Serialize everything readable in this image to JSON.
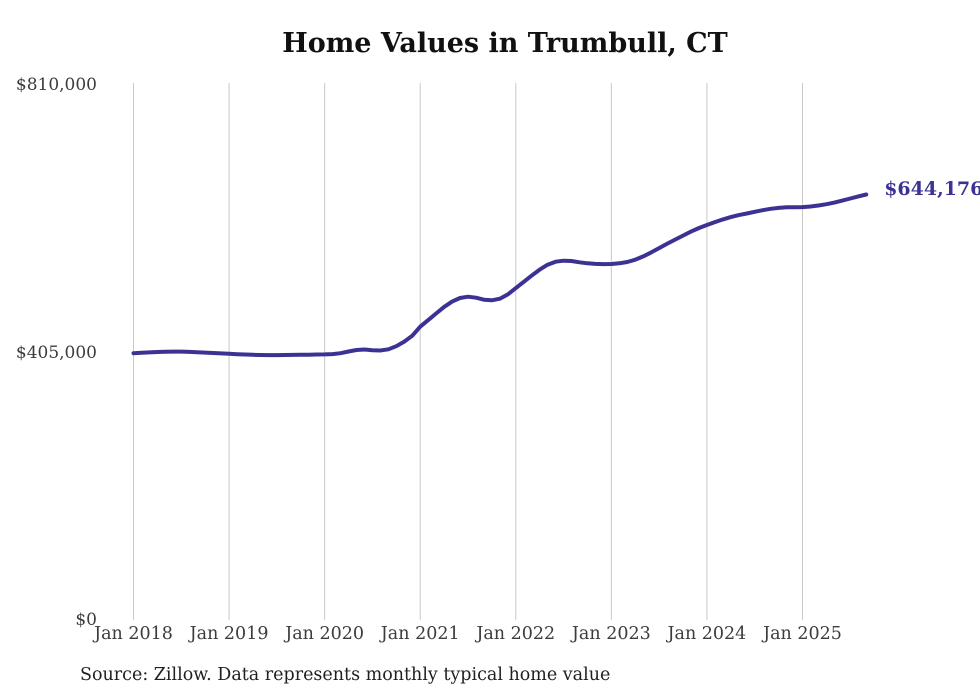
{
  "chart": {
    "title": "Home Values in Trumbull, CT",
    "end_label": "$644,176",
    "source_note": "Source: Zillow. Data represents monthly typical home value",
    "colors": {
      "line": "#3b3294",
      "grid": "#c9c9c9",
      "title_text": "#111111",
      "axis_text": "#3c3c3c",
      "end_label_text": "#3b3294",
      "background": "#ffffff"
    },
    "y_axis": {
      "ticks": [
        {
          "label": "$810,000",
          "value": 810000
        },
        {
          "label": "$405,000",
          "value": 405000
        },
        {
          "label": "$0",
          "value": 0
        }
      ]
    },
    "x_axis": {
      "ticks": [
        {
          "label": "Jan 2018",
          "month_index": 0
        },
        {
          "label": "Jan 2019",
          "month_index": 12
        },
        {
          "label": "Jan 2020",
          "month_index": 24
        },
        {
          "label": "Jan 2021",
          "month_index": 36
        },
        {
          "label": "Jan 2022",
          "month_index": 48
        },
        {
          "label": "Jan 2023",
          "month_index": 60
        },
        {
          "label": "Jan 2024",
          "month_index": 72
        },
        {
          "label": "Jan 2025",
          "month_index": 84
        }
      ]
    }
  },
  "chart_data": {
    "type": "line",
    "title": "Home Values in Trumbull, CT",
    "ylabel": "",
    "xlabel": "",
    "ylim": [
      0,
      810000
    ],
    "grid": "vertical-only",
    "legend": "none",
    "final_value": 644176,
    "final_value_label": "$644,176",
    "source": "Source: Zillow. Data represents monthly typical home value",
    "x": [
      "2018-01",
      "2018-02",
      "2018-03",
      "2018-04",
      "2018-05",
      "2018-06",
      "2018-07",
      "2018-08",
      "2018-09",
      "2018-10",
      "2018-11",
      "2018-12",
      "2019-01",
      "2019-02",
      "2019-03",
      "2019-04",
      "2019-05",
      "2019-06",
      "2019-07",
      "2019-08",
      "2019-09",
      "2019-10",
      "2019-11",
      "2019-12",
      "2020-01",
      "2020-02",
      "2020-03",
      "2020-04",
      "2020-05",
      "2020-06",
      "2020-07",
      "2020-08",
      "2020-09",
      "2020-10",
      "2020-11",
      "2020-12",
      "2021-01",
      "2021-02",
      "2021-03",
      "2021-04",
      "2021-05",
      "2021-06",
      "2021-07",
      "2021-08",
      "2021-09",
      "2021-10",
      "2021-11",
      "2021-12",
      "2022-01",
      "2022-02",
      "2022-03",
      "2022-04",
      "2022-05",
      "2022-06",
      "2022-07",
      "2022-08",
      "2022-09",
      "2022-10",
      "2022-11",
      "2022-12",
      "2023-01",
      "2023-02",
      "2023-03",
      "2023-04",
      "2023-05",
      "2023-06",
      "2023-07",
      "2023-08",
      "2023-09",
      "2023-10",
      "2023-11",
      "2023-12",
      "2024-01",
      "2024-02",
      "2024-03",
      "2024-04",
      "2024-05",
      "2024-06",
      "2024-07",
      "2024-08",
      "2024-09",
      "2024-10",
      "2024-11",
      "2024-12",
      "2025-01",
      "2025-02",
      "2025-03",
      "2025-04",
      "2025-05",
      "2025-06",
      "2025-07",
      "2025-08",
      "2025-09"
    ],
    "values": [
      404000,
      404500,
      405200,
      405800,
      406200,
      406400,
      406300,
      405900,
      405400,
      404800,
      404200,
      403600,
      403000,
      402400,
      401900,
      401500,
      401200,
      401100,
      401100,
      401200,
      401300,
      401500,
      401700,
      401900,
      402100,
      402600,
      404000,
      406500,
      408800,
      409500,
      408400,
      408000,
      409800,
      414500,
      421500,
      430500,
      444000,
      454000,
      464000,
      474000,
      482000,
      487500,
      489500,
      488000,
      485000,
      484000,
      486500,
      493000,
      502500,
      512000,
      521500,
      530500,
      538000,
      542500,
      544000,
      543500,
      541500,
      540000,
      539200,
      538800,
      539000,
      540000,
      542000,
      545500,
      550500,
      556500,
      563000,
      569500,
      576000,
      582000,
      588000,
      593500,
      598000,
      602500,
      606500,
      610000,
      613000,
      615500,
      618000,
      620500,
      622500,
      624000,
      624800,
      625000,
      625200,
      626000,
      627500,
      629500,
      632000,
      635000,
      638200,
      641300,
      644176
    ]
  }
}
